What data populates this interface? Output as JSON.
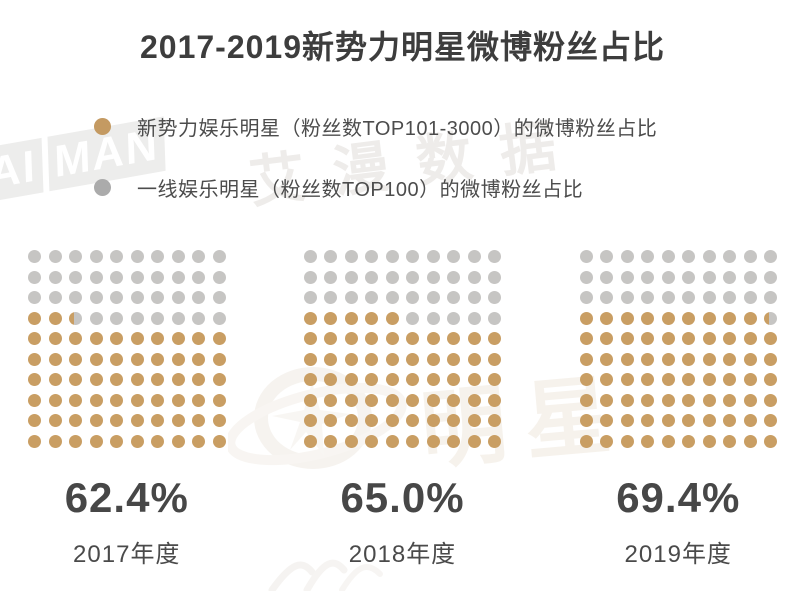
{
  "title": "2017-2019新势力明星微博粉丝占比",
  "legend": {
    "items": [
      {
        "label": "新势力娱乐明星（粉丝数TOP101-3000）的微博粉丝占比",
        "color": "#C49A62"
      },
      {
        "label": "一线娱乐明星（粉丝数TOP100）的微博粉丝占比",
        "color": "#ABABAB"
      }
    ]
  },
  "watermarks": {
    "logo_part1": "AI",
    "logo_part2": "MAN",
    "brand_text": "艾漫数据",
    "center_text": "明星"
  },
  "chart_data": {
    "type": "waffle",
    "title": "2017-2019新势力明星微博粉丝占比",
    "grid": {
      "rows": 10,
      "cols": 10
    },
    "percent_per_dot": 1,
    "fill_origin": "bottom-left, fills left-to-right then upward; fractional remainder drawn as partially-filled dot",
    "colors": {
      "primary": "#C99E63",
      "secondary": "#C6C5C3"
    },
    "legend_position": "top-left",
    "categories": [
      "2017年度",
      "2018年度",
      "2019年度"
    ],
    "values": [
      62.4,
      65.0,
      69.4
    ],
    "groups": [
      {
        "year_label": "2017年度",
        "value": 62.4,
        "value_label": "62.4%"
      },
      {
        "year_label": "2018年度",
        "value": 65.0,
        "value_label": "65.0%"
      },
      {
        "year_label": "2019年度",
        "value": 69.4,
        "value_label": "69.4%"
      }
    ]
  }
}
